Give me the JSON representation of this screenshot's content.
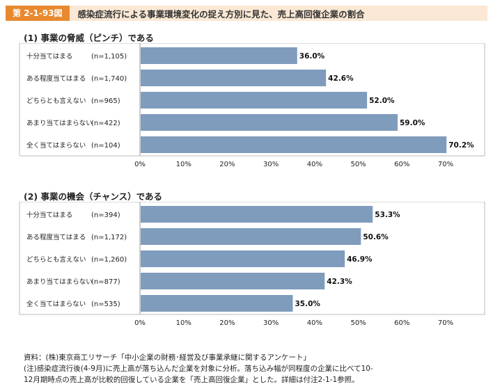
{
  "figure": {
    "label": "第 2-1-93図",
    "title": "感染症流行による事業環境変化の捉え方別に見た、売上高回復企業の割合"
  },
  "chart_data": [
    {
      "type": "bar",
      "orientation": "horizontal",
      "title": "(1) 事業の脅威（ピンチ）である",
      "categories": [
        "十分当てはまる",
        "ある程度当てはまる",
        "どちらとも言えない",
        "あまり当てはまらない",
        "全く当てはまらない"
      ],
      "n_labels": [
        "(n=1,105)",
        "(n=1,740)",
        "(n=965)",
        "(n=422)",
        "(n=104)"
      ],
      "values": [
        36.0,
        42.6,
        52.0,
        59.0,
        70.2
      ],
      "value_labels": [
        "36.0%",
        "42.6%",
        "52.0%",
        "59.0%",
        "70.2%"
      ],
      "xlim": [
        0,
        70
      ],
      "ticks": [
        "0%",
        "10%",
        "20%",
        "30%",
        "40%",
        "50%",
        "60%",
        "70%"
      ],
      "bar_color": "#7f9cbd",
      "grid": false
    },
    {
      "type": "bar",
      "orientation": "horizontal",
      "title": "(2) 事業の機会（チャンス）である",
      "categories": [
        "十分当てはまる",
        "ある程度当てはまる",
        "どちらとも言えない",
        "あまり当てはまらない",
        "全く当てはまらない"
      ],
      "n_labels": [
        "(n=394)",
        "(n=1,172)",
        "(n=1,260)",
        "(n=877)",
        "(n=535)"
      ],
      "values": [
        53.3,
        50.6,
        46.9,
        42.3,
        35.0
      ],
      "value_labels": [
        "53.3%",
        "50.6%",
        "46.9%",
        "42.3%",
        "35.0%"
      ],
      "xlim": [
        0,
        70
      ],
      "ticks": [
        "0%",
        "10%",
        "20%",
        "30%",
        "40%",
        "50%",
        "60%",
        "70%"
      ],
      "bar_color": "#7f9cbd",
      "grid": false
    }
  ],
  "notes": {
    "source": "資料：(株)東京商工リサーチ「中小企業の財務･経営及び事業承継に関するアンケート」",
    "note_line1": "(注)感染症流行後(4-9月)に売上高が落ち込んだ企業を対象に分析。落ち込み幅が同程度の企業に比べて10-",
    "note_line2": "12月期時点の売上高が比較的回復している企業を「売上高回復企業」とした。詳細は付注2-1-1参照。"
  }
}
